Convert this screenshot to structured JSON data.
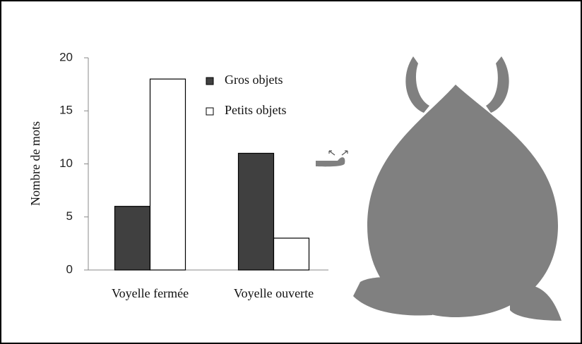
{
  "chart_data": {
    "type": "bar",
    "y_label": "Nombre de mots",
    "categories": [
      "Voyelle fermée",
      "Voyelle ouverte"
    ],
    "series": [
      {
        "name": "Gros objets",
        "color": "#404040",
        "values": [
          6,
          11
        ]
      },
      {
        "name": "Petits objets",
        "color": "#ffffff",
        "values": [
          18,
          3
        ]
      }
    ],
    "ylim": [
      0,
      20
    ],
    "yticks": [
      0,
      5,
      10,
      15,
      20
    ],
    "grid": false
  }
}
